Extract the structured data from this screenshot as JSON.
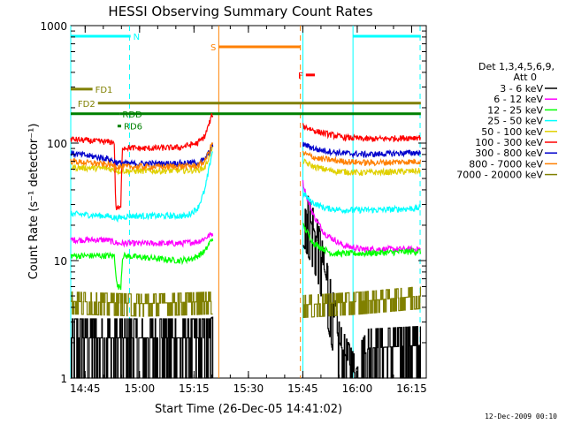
{
  "chart_data": {
    "type": "line",
    "title": "HESSI Observing Summary Count Rates",
    "xlabel": "Start Time (26-Dec-05 14:41:02)",
    "ylabel": "Count Rate (s⁻¹ detector⁻¹)",
    "y_scale": "log",
    "ylim": [
      1,
      1000
    ],
    "xlim_minutes": [
      0,
      98
    ],
    "x_ticks": [
      {
        "label": "14:45",
        "min": 3.97
      },
      {
        "label": "15:00",
        "min": 18.97
      },
      {
        "label": "15:15",
        "min": 33.97
      },
      {
        "label": "15:30",
        "min": 48.97
      },
      {
        "label": "15:45",
        "min": 63.97
      },
      {
        "label": "16:00",
        "min": 78.97
      },
      {
        "label": "16:15",
        "min": 93.97
      }
    ],
    "y_ticks": [
      {
        "label": "1",
        "value": 1
      },
      {
        "label": "10",
        "value": 10
      },
      {
        "label": "100",
        "value": 100
      },
      {
        "label": "1000",
        "value": 1000
      }
    ],
    "legend": {
      "position": "right",
      "header1": "Det 1,3,4,5,6,9,",
      "header2": "Att 0",
      "entries": [
        {
          "label": "3 - 6 keV",
          "color": "#000000"
        },
        {
          "label": "6 - 12 keV",
          "color": "#ff00ff"
        },
        {
          "label": "12 - 25 keV",
          "color": "#00ff00"
        },
        {
          "label": "25 - 50 keV",
          "color": "#00ffff"
        },
        {
          "label": "50 - 100 keV",
          "color": "#e0d000"
        },
        {
          "label": "100 - 300 keV",
          "color": "#ff0000"
        },
        {
          "label": "300 - 800 keV",
          "color": "#0000cc"
        },
        {
          "label": "800 - 7000 keV",
          "color": "#ff8000"
        },
        {
          "label": "7000 - 20000 keV",
          "color": "#808000"
        }
      ]
    },
    "flags": [
      {
        "label": "N",
        "color": "#00ffff",
        "label_at_start": false,
        "intervals": [
          [
            0,
            16.5
          ],
          [
            77.8,
            96.5
          ]
        ],
        "level": 0.03
      },
      {
        "label": "S",
        "color": "#ff8000",
        "label_at_start": true,
        "intervals": [
          [
            40.8,
            63.3
          ]
        ],
        "level": 0.06
      },
      {
        "label": "F",
        "color": "#ff0000",
        "label_at_start": true,
        "intervals": [
          [
            64.8,
            67.3
          ]
        ],
        "level": 0.14
      },
      {
        "label": "FD1",
        "color": "#808000",
        "label_at_start": false,
        "intervals": [
          [
            0,
            6
          ]
        ],
        "level": 0.18
      },
      {
        "label": "FD2",
        "color": "#808000",
        "label_at_start": true,
        "intervals": [
          [
            7.5,
            96.5
          ]
        ],
        "level": 0.22
      },
      {
        "label": "RDD",
        "color": "#008000",
        "label_at_start": false,
        "intervals": [
          [
            0,
            13.5
          ],
          [
            13.5,
            96.5
          ]
        ],
        "level": 0.25
      },
      {
        "label": "RD6",
        "color": "#008000",
        "label_at_start": false,
        "intervals": [
          [
            12.9,
            13.9
          ]
        ],
        "level": 0.285
      }
    ],
    "vlines": [
      {
        "min": 0,
        "color": "#00ffff",
        "dash": false
      },
      {
        "min": 16.2,
        "color": "#00ffff",
        "dash": true
      },
      {
        "min": 40.8,
        "color": "#ff8000",
        "dash": false
      },
      {
        "min": 63.3,
        "color": "#ff8000",
        "dash": true
      },
      {
        "min": 64.0,
        "color": "#00ffff",
        "dash": false
      },
      {
        "min": 77.8,
        "color": "#00ffff",
        "dash": false
      },
      {
        "min": 96.3,
        "color": "#00ffff",
        "dash": true
      }
    ],
    "gap_minutes": [
      39.2,
      64.0
    ],
    "series": [
      {
        "name": "3 - 6 keV",
        "color": "#000000",
        "style": "noisy_low",
        "points": [
          [
            0,
            2.2
          ],
          [
            38.4,
            2.2
          ],
          [
            39.2,
            2.3
          ],
          [
            64,
            30
          ],
          [
            66,
            22
          ],
          [
            68,
            15
          ],
          [
            70,
            8
          ],
          [
            72,
            4
          ],
          [
            74,
            2
          ],
          [
            78,
            1.1
          ],
          [
            82,
            1.8
          ],
          [
            96.5,
            1.9
          ]
        ]
      },
      {
        "name": "6 - 12 keV",
        "color": "#ff00ff",
        "points": [
          [
            0,
            15
          ],
          [
            10,
            15
          ],
          [
            13,
            14
          ],
          [
            14.5,
            14
          ],
          [
            16,
            14
          ],
          [
            30,
            14
          ],
          [
            35,
            14.5
          ],
          [
            37,
            15.5
          ],
          [
            39,
            17
          ],
          [
            64,
            46
          ],
          [
            65,
            35
          ],
          [
            67,
            24
          ],
          [
            70,
            17
          ],
          [
            75,
            13.5
          ],
          [
            80,
            12.5
          ],
          [
            90,
            12.5
          ],
          [
            96.5,
            12.5
          ]
        ]
      },
      {
        "name": "12 - 25 keV",
        "color": "#00ff00",
        "points": [
          [
            0,
            11
          ],
          [
            12,
            11
          ],
          [
            12.8,
            6
          ],
          [
            13.8,
            6
          ],
          [
            14.3,
            11
          ],
          [
            30,
            10
          ],
          [
            34,
            10.5
          ],
          [
            37,
            12
          ],
          [
            39,
            15.5
          ],
          [
            64,
            20
          ],
          [
            67,
            14
          ],
          [
            72,
            11.5
          ],
          [
            80,
            11.5
          ],
          [
            96.5,
            12
          ]
        ]
      },
      {
        "name": "25 - 50 keV",
        "color": "#00ffff",
        "points": [
          [
            0,
            25
          ],
          [
            10,
            24
          ],
          [
            13,
            23
          ],
          [
            16,
            24
          ],
          [
            25,
            24
          ],
          [
            32,
            24
          ],
          [
            35,
            28
          ],
          [
            37,
            40
          ],
          [
            39,
            85
          ],
          [
            64,
            38
          ],
          [
            66,
            32
          ],
          [
            70,
            28
          ],
          [
            75,
            27
          ],
          [
            85,
            27
          ],
          [
            96.5,
            28
          ]
        ]
      },
      {
        "name": "50 - 100 keV",
        "color": "#e0d000",
        "points": [
          [
            0,
            62
          ],
          [
            10,
            61
          ],
          [
            13,
            58
          ],
          [
            16,
            58
          ],
          [
            25,
            58
          ],
          [
            35,
            59
          ],
          [
            37,
            62
          ],
          [
            39,
            90
          ],
          [
            64,
            70
          ],
          [
            67,
            63
          ],
          [
            72,
            58
          ],
          [
            80,
            56
          ],
          [
            90,
            57
          ],
          [
            96.5,
            58
          ]
        ]
      },
      {
        "name": "100 - 300 keV",
        "color": "#ff0000",
        "points": [
          [
            0,
            108
          ],
          [
            8,
            103
          ],
          [
            12,
            102
          ],
          [
            12.4,
            28
          ],
          [
            13.8,
            28
          ],
          [
            14.2,
            92
          ],
          [
            20,
            90
          ],
          [
            30,
            92
          ],
          [
            35,
            100
          ],
          [
            37,
            115
          ],
          [
            39,
            175
          ],
          [
            64,
            140
          ],
          [
            68,
            125
          ],
          [
            75,
            112
          ],
          [
            82,
            108
          ],
          [
            90,
            110
          ],
          [
            96.5,
            112
          ]
        ]
      },
      {
        "name": "300 - 800 keV",
        "color": "#0000cc",
        "points": [
          [
            0,
            82
          ],
          [
            10,
            74
          ],
          [
            13,
            68
          ],
          [
            16,
            67
          ],
          [
            25,
            67
          ],
          [
            35,
            68
          ],
          [
            37,
            72
          ],
          [
            39,
            95
          ],
          [
            64,
            98
          ],
          [
            68,
            88
          ],
          [
            75,
            82
          ],
          [
            82,
            80
          ],
          [
            90,
            82
          ],
          [
            96.5,
            83
          ]
        ]
      },
      {
        "name": "800 - 7000 keV",
        "color": "#ff8000",
        "points": [
          [
            0,
            70
          ],
          [
            10,
            66
          ],
          [
            13,
            63
          ],
          [
            16,
            63
          ],
          [
            25,
            63
          ],
          [
            35,
            64
          ],
          [
            37,
            70
          ],
          [
            39,
            100
          ],
          [
            64,
            82
          ],
          [
            68,
            74
          ],
          [
            75,
            70
          ],
          [
            82,
            68
          ],
          [
            90,
            69
          ],
          [
            96.5,
            70
          ]
        ]
      },
      {
        "name": "7000 - 20000 keV",
        "color": "#808000",
        "style": "noisy_mid",
        "points": [
          [
            0,
            4.5
          ],
          [
            20,
            4.3
          ],
          [
            39,
            4.5
          ],
          [
            64,
            4.2
          ],
          [
            80,
            4.5
          ],
          [
            96.5,
            5
          ]
        ]
      }
    ]
  },
  "footer_stamp": "12-Dec-2009 00:10"
}
